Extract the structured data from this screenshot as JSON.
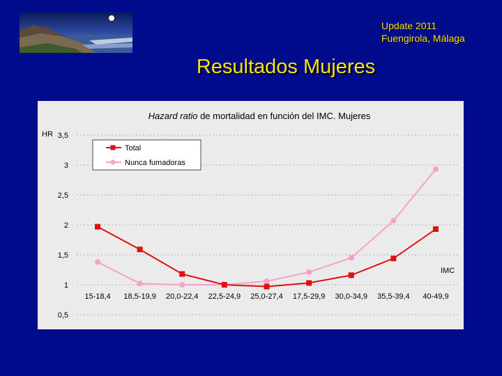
{
  "header": {
    "line1": "Update 2011",
    "line2": "Fuengirola, Málaga",
    "title": "Resultados Mujeres"
  },
  "colors": {
    "background": "#000c8c",
    "accent_text": "#f4e21a",
    "total_series": "#dd1111",
    "nunca_series": "#f7a0c8"
  },
  "chart_data": {
    "type": "line",
    "title_italic": "Hazard ratio",
    "title_rest": " de mortalidad en función del IMC. Mujeres",
    "ylabel": "HR",
    "xlabel": "IMC",
    "ylim": [
      0.5,
      3.5
    ],
    "yticks": [
      3.5,
      3,
      2.5,
      2,
      1.5,
      1,
      0.5
    ],
    "ytick_labels": [
      "3,5",
      "3",
      "2,5",
      "2",
      "1,5",
      "1",
      "0,5"
    ],
    "categories": [
      "15-18,4",
      "18,5-19,9",
      "20,0-22,4",
      "22,5-24,9",
      "25,0-27,4",
      "17,5-29,9",
      "30,0-34,9",
      "35,5-39,4",
      "40-49,9"
    ],
    "grid": true,
    "legend_position": "top-left",
    "series": [
      {
        "name": "Total",
        "marker": "square",
        "color": "#dd1111",
        "values": [
          1.97,
          1.59,
          1.18,
          1.0,
          0.97,
          1.03,
          1.16,
          1.44,
          1.93
        ]
      },
      {
        "name": "Nunca fumadoras",
        "marker": "circle",
        "color": "#f7a0c8",
        "values": [
          1.38,
          1.02,
          1.0,
          1.0,
          1.06,
          1.21,
          1.45,
          2.07,
          2.93
        ]
      }
    ]
  }
}
